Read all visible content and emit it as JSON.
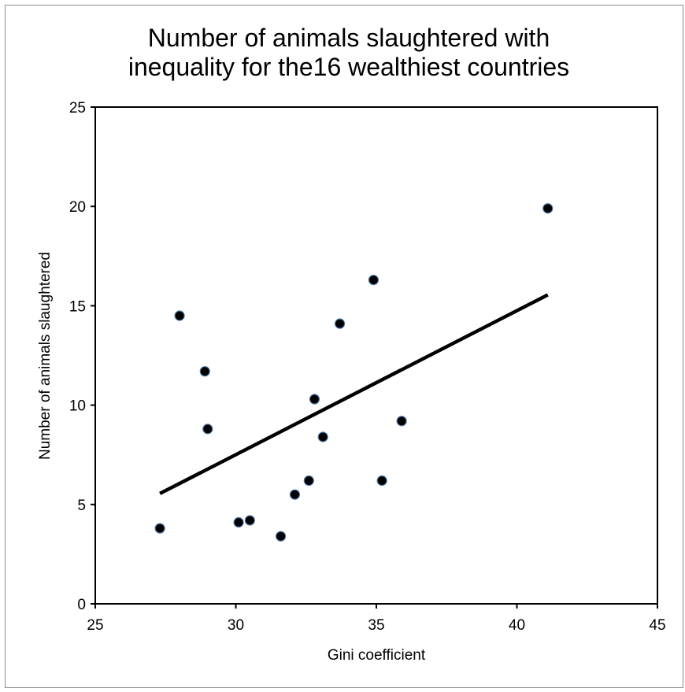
{
  "chart_data": {
    "type": "scatter",
    "title": [
      "Number of animals slaughtered with",
      "inequality for the16 wealthiest countries"
    ],
    "xlabel": "Gini coefficient",
    "ylabel": "Number of animals slaughtered",
    "xlim": [
      25,
      45
    ],
    "ylim": [
      0,
      25
    ],
    "xticks": [
      25,
      30,
      35,
      40,
      45
    ],
    "yticks": [
      0,
      5,
      10,
      15,
      20,
      25
    ],
    "grid": false,
    "legend": "none",
    "marker_color": "#000000",
    "marker_edge_color": "#4a78a8",
    "trendline_color": "#000000",
    "points": [
      {
        "x": 27.3,
        "y": 3.8
      },
      {
        "x": 28.0,
        "y": 14.5
      },
      {
        "x": 28.9,
        "y": 11.7
      },
      {
        "x": 29.0,
        "y": 8.8
      },
      {
        "x": 30.1,
        "y": 4.1
      },
      {
        "x": 30.5,
        "y": 4.2
      },
      {
        "x": 31.6,
        "y": 3.4
      },
      {
        "x": 32.1,
        "y": 5.5
      },
      {
        "x": 32.6,
        "y": 6.2
      },
      {
        "x": 32.8,
        "y": 10.3
      },
      {
        "x": 33.1,
        "y": 8.4
      },
      {
        "x": 33.7,
        "y": 14.1
      },
      {
        "x": 34.9,
        "y": 16.3
      },
      {
        "x": 35.2,
        "y": 6.2
      },
      {
        "x": 35.9,
        "y": 9.2
      },
      {
        "x": 41.1,
        "y": 19.9
      }
    ],
    "trendline": {
      "x": [
        27.3,
        41.1
      ],
      "y": [
        5.55,
        15.55
      ]
    }
  }
}
